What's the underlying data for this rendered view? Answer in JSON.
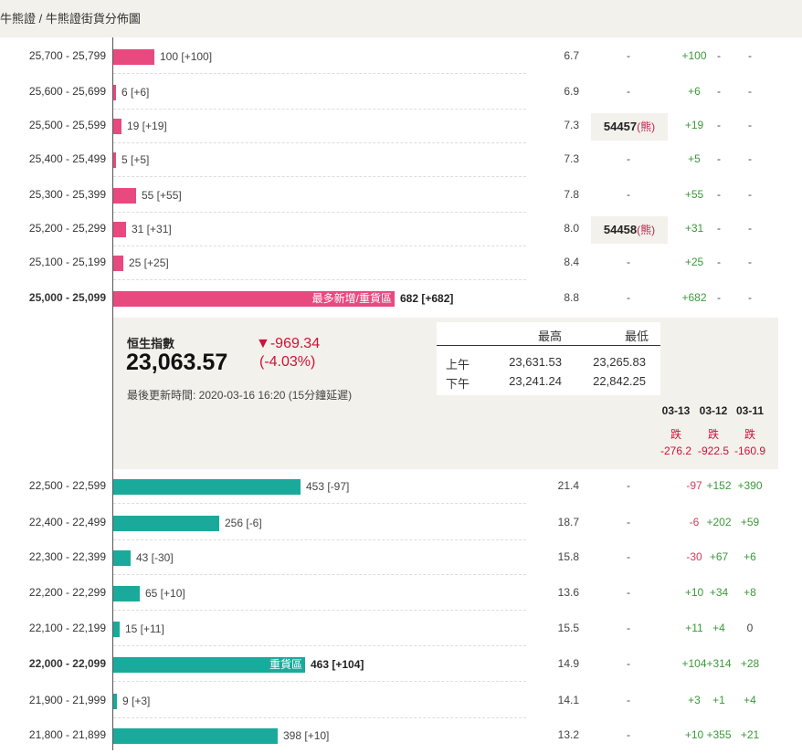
{
  "breadcrumb": "牛熊證 / 牛熊證街貨分佈圖",
  "bear_rows": [
    {
      "range": "25,700 - 25,799",
      "label": "100 [+100]",
      "ratio": "6.7",
      "strike": "-",
      "chg": [
        "+100",
        "-",
        "-"
      ],
      "value": 100
    },
    {
      "range": "25,600 - 25,699",
      "label": "6 [+6]",
      "ratio": "6.9",
      "strike": "-",
      "chg": [
        "+6",
        "-",
        "-"
      ],
      "value": 6
    },
    {
      "range": "25,500 - 25,599",
      "label": "19 [+19]",
      "ratio": "7.3",
      "strike": "54457",
      "kind": "(熊)",
      "chg": [
        "+19",
        "-",
        "-"
      ],
      "value": 19
    },
    {
      "range": "25,400 - 25,499",
      "label": "5 [+5]",
      "ratio": "7.3",
      "strike": "-",
      "chg": [
        "+5",
        "-",
        "-"
      ],
      "value": 5
    },
    {
      "range": "25,300 - 25,399",
      "label": "55 [+55]",
      "ratio": "7.8",
      "strike": "-",
      "chg": [
        "+55",
        "-",
        "-"
      ],
      "value": 55
    },
    {
      "range": "25,200 - 25,299",
      "label": "31 [+31]",
      "ratio": "8.0",
      "strike": "54458",
      "kind": "(熊)",
      "chg": [
        "+31",
        "-",
        "-"
      ],
      "value": 31
    },
    {
      "range": "25,100 - 25,199",
      "label": "25 [+25]",
      "ratio": "8.4",
      "strike": "-",
      "chg": [
        "+25",
        "-",
        "-"
      ],
      "value": 25
    },
    {
      "range": "25,000 - 25,099",
      "label": "682 [+682]",
      "inbar": "最多新增/重貨區",
      "bold": true,
      "ratio": "8.8",
      "strike": "-",
      "chg": [
        "+682",
        "-",
        "-"
      ],
      "value": 682
    }
  ],
  "index": {
    "name": "恒生指數",
    "value": "23,063.57",
    "change": "▼-969.34",
    "pct": "(-4.03%)",
    "updated": "最後更新時間: 2020-03-16 16:20 (15分鐘延遲)",
    "high_label": "最高",
    "low_label": "最低",
    "am_label": "上午",
    "pm_label": "下午",
    "am_high": "23,631.53",
    "am_low": "23,265.83",
    "pm_high": "23,241.24",
    "pm_low": "22,842.25"
  },
  "days": [
    {
      "date": "03-13",
      "dir": "跌",
      "val": "-276.2"
    },
    {
      "date": "03-12",
      "dir": "跌",
      "val": "-922.5"
    },
    {
      "date": "03-11",
      "dir": "跌",
      "val": "-160.9"
    }
  ],
  "bull_rows": [
    {
      "range": "22,500 - 22,599",
      "label": "453 [-97]",
      "ratio": "21.4",
      "strike": "-",
      "chg": [
        "-97",
        "+152",
        "+390"
      ],
      "value": 453
    },
    {
      "range": "22,400 - 22,499",
      "label": "256 [-6]",
      "ratio": "18.7",
      "strike": "-",
      "chg": [
        "-6",
        "+202",
        "+59"
      ],
      "value": 256
    },
    {
      "range": "22,300 - 22,399",
      "label": "43 [-30]",
      "ratio": "15.8",
      "strike": "-",
      "chg": [
        "-30",
        "+67",
        "+6"
      ],
      "value": 43
    },
    {
      "range": "22,200 - 22,299",
      "label": "65 [+10]",
      "ratio": "13.6",
      "strike": "-",
      "chg": [
        "+10",
        "+34",
        "+8"
      ],
      "value": 65
    },
    {
      "range": "22,100 - 22,199",
      "label": "15 [+11]",
      "ratio": "15.5",
      "strike": "-",
      "chg": [
        "+11",
        "+4",
        "0"
      ],
      "value": 15
    },
    {
      "range": "22,000 - 22,099",
      "label": "463 [+104]",
      "inbar": "重貨區",
      "bold": true,
      "ratio": "14.9",
      "strike": "-",
      "chg": [
        "+104",
        "+314",
        "+28"
      ],
      "value": 463
    },
    {
      "range": "21,900 - 21,999",
      "label": "9 [+3]",
      "ratio": "14.1",
      "strike": "-",
      "chg": [
        "+3",
        "+1",
        "+4"
      ],
      "value": 9
    },
    {
      "range": "21,800 - 21,899",
      "label": "398 [+10]",
      "ratio": "13.2",
      "strike": "-",
      "chg": [
        "+10",
        "+355",
        "+21"
      ],
      "value": 398
    }
  ]
}
